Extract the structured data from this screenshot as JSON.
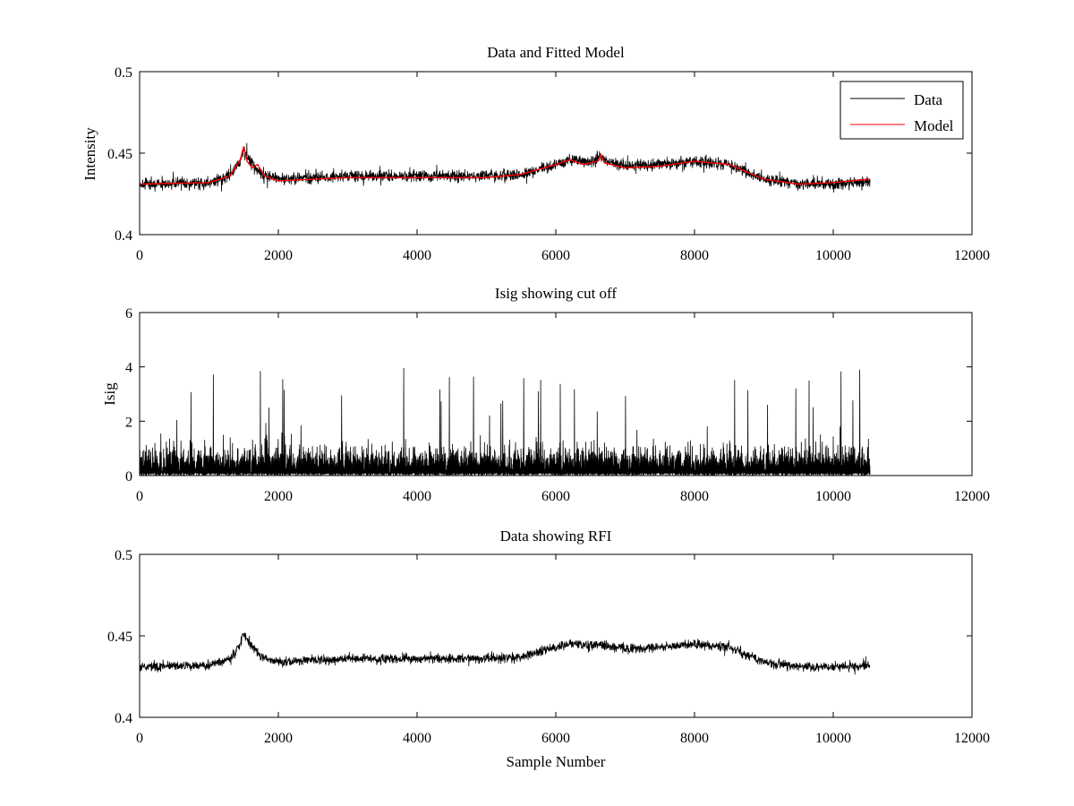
{
  "chart_data": [
    {
      "type": "line",
      "title": "Data and Fitted Model",
      "xlabel": "",
      "ylabel": "Intensity",
      "xlim": [
        0,
        12000
      ],
      "ylim": [
        0.4,
        0.5
      ],
      "xticks": [
        0,
        2000,
        4000,
        6000,
        8000,
        10000,
        12000
      ],
      "xtick_labels": [
        "0",
        "2000",
        "4000",
        "6000",
        "8000",
        "10000",
        "12000"
      ],
      "yticks": [
        0.4,
        0.45,
        0.5
      ],
      "ytick_labels": [
        "0.4",
        "0.45",
        "0.5"
      ],
      "grid": false,
      "legend": {
        "placement": "top-right",
        "entries": [
          "Data",
          "Model"
        ]
      },
      "series": [
        {
          "name": "Data",
          "color": "#000000",
          "style": "noisy",
          "noise_amplitude": 0.0045,
          "x": [
            0,
            1000,
            1300,
            1450,
            1500,
            1550,
            1650,
            1750,
            2000,
            2500,
            3000,
            4000,
            5000,
            5500,
            6000,
            6250,
            6500,
            6650,
            6700,
            7000,
            7500,
            8000,
            8500,
            9000,
            9500,
            10000,
            10530
          ],
          "y": [
            0.431,
            0.432,
            0.436,
            0.445,
            0.452,
            0.447,
            0.442,
            0.437,
            0.434,
            0.435,
            0.436,
            0.436,
            0.436,
            0.437,
            0.443,
            0.446,
            0.444,
            0.448,
            0.446,
            0.442,
            0.443,
            0.445,
            0.443,
            0.434,
            0.431,
            0.431,
            0.432
          ]
        },
        {
          "name": "Model",
          "color": "#ff0000",
          "style": "smooth",
          "x": [
            0,
            1000,
            1300,
            1450,
            1500,
            1550,
            1620,
            1700,
            1800,
            2000,
            2500,
            3000,
            4000,
            5000,
            5500,
            6000,
            6200,
            6400,
            6600,
            6650,
            6700,
            7000,
            7500,
            8000,
            8500,
            9000,
            9500,
            10000,
            10530
          ],
          "y": [
            0.431,
            0.432,
            0.436,
            0.446,
            0.454,
            0.445,
            0.441,
            0.443,
            0.436,
            0.433,
            0.434,
            0.435,
            0.435,
            0.435,
            0.437,
            0.443,
            0.446,
            0.443,
            0.445,
            0.449,
            0.444,
            0.441,
            0.442,
            0.445,
            0.443,
            0.434,
            0.431,
            0.432,
            0.434
          ]
        }
      ]
    },
    {
      "type": "line",
      "title": "Isig showing cut off",
      "xlabel": "",
      "ylabel": "Isig",
      "xlim": [
        0,
        12000
      ],
      "ylim": [
        0,
        6
      ],
      "xticks": [
        0,
        2000,
        4000,
        6000,
        8000,
        10000,
        12000
      ],
      "xtick_labels": [
        "0",
        "2000",
        "4000",
        "6000",
        "8000",
        "10000",
        "12000"
      ],
      "yticks": [
        0,
        2,
        4,
        6
      ],
      "ytick_labels": [
        "0",
        "2",
        "4",
        "6"
      ],
      "grid": false,
      "series": [
        {
          "color": "#000000",
          "style": "spiky",
          "x_range": [
            0,
            10530
          ],
          "y_floor": 0,
          "typical_max": 1.8,
          "peak_max": 4.0
        }
      ]
    },
    {
      "type": "line",
      "title": "Data showing RFI",
      "xlabel": "Sample Number",
      "ylabel": "",
      "xlim": [
        0,
        12000
      ],
      "ylim": [
        0.4,
        0.5
      ],
      "xticks": [
        0,
        2000,
        4000,
        6000,
        8000,
        10000,
        12000
      ],
      "xtick_labels": [
        "0",
        "2000",
        "4000",
        "6000",
        "8000",
        "10000",
        "12000"
      ],
      "yticks": [
        0.4,
        0.45,
        0.5
      ],
      "ytick_labels": [
        "0.4",
        "0.45",
        "0.5"
      ],
      "grid": false,
      "series": [
        {
          "color": "#000000",
          "style": "noisy",
          "noise_amplitude": 0.0035,
          "x": [
            0,
            1000,
            1300,
            1450,
            1500,
            1550,
            1650,
            1750,
            2000,
            2500,
            3000,
            4000,
            5000,
            5500,
            6000,
            6250,
            6500,
            6650,
            6700,
            7000,
            7500,
            8000,
            8500,
            9000,
            9500,
            10000,
            10530
          ],
          "y": [
            0.431,
            0.432,
            0.436,
            0.445,
            0.452,
            0.447,
            0.442,
            0.437,
            0.434,
            0.435,
            0.436,
            0.436,
            0.436,
            0.437,
            0.443,
            0.446,
            0.444,
            0.445,
            0.444,
            0.442,
            0.443,
            0.445,
            0.443,
            0.434,
            0.431,
            0.431,
            0.432
          ]
        }
      ]
    }
  ]
}
